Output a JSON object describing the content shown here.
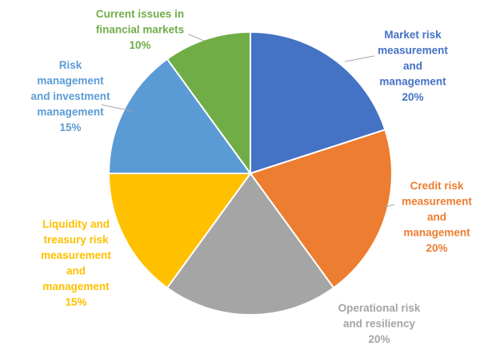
{
  "chart_data": {
    "type": "pie",
    "title": "",
    "unit": "%",
    "slices": [
      {
        "label_lines": [
          "Market risk",
          "measurement",
          "and",
          "management"
        ],
        "value": 20,
        "value_text": "20%",
        "color": "#4472C4"
      },
      {
        "label_lines": [
          "Credit risk",
          "measurement",
          "and",
          "management"
        ],
        "value": 20,
        "value_text": "20%",
        "color": "#ED7D31"
      },
      {
        "label_lines": [
          "Operational risk",
          "and resiliency"
        ],
        "value": 20,
        "value_text": "20%",
        "color": "#A5A5A5"
      },
      {
        "label_lines": [
          "Liquidity and",
          "treasury risk",
          "measurement",
          "and",
          "management"
        ],
        "value": 15,
        "value_text": "15%",
        "color": "#FFC000"
      },
      {
        "label_lines": [
          "Risk",
          "management",
          "and investment",
          "management"
        ],
        "value": 15,
        "value_text": "15%",
        "color": "#5B9BD5"
      },
      {
        "label_lines": [
          "Current issues in",
          "financial markets"
        ],
        "value": 10,
        "value_text": "10%",
        "color": "#70AD47"
      }
    ],
    "legend": "none",
    "data_labels": "outside-with-leader-lines"
  }
}
